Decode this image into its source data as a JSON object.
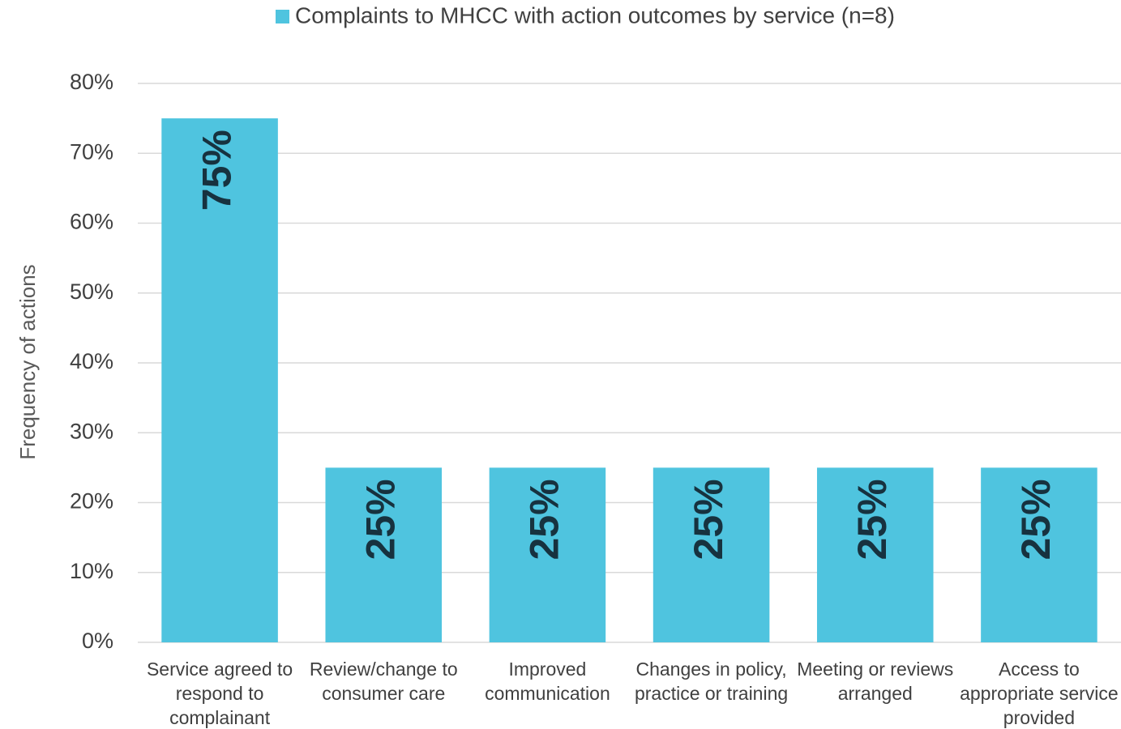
{
  "chart_data": {
    "type": "bar",
    "legend": "Complaints to MHCC with action outcomes by service (n=8)",
    "y_label": "Frequency of actions",
    "categories": [
      "Service agreed to respond to complainant",
      "Review/change to consumer care",
      "Improved communication",
      "Changes in policy, practice or training",
      "Meeting or reviews arranged",
      "Access to appropriate service provided"
    ],
    "values": [
      75,
      25,
      25,
      25,
      25,
      25
    ],
    "value_labels": [
      "75%",
      "25%",
      "25%",
      "25%",
      "25%",
      "25%"
    ],
    "color": "#4fc4df",
    "ylim": [
      0,
      80
    ],
    "yticks": [
      {
        "value": 0,
        "label": "0%"
      },
      {
        "value": 10,
        "label": "10%"
      },
      {
        "value": 20,
        "label": "20%"
      },
      {
        "value": 30,
        "label": "30%"
      },
      {
        "value": 40,
        "label": "40%"
      },
      {
        "value": 50,
        "label": "50%"
      },
      {
        "value": 60,
        "label": "60%"
      },
      {
        "value": 70,
        "label": "70%"
      },
      {
        "value": 80,
        "label": "80%"
      }
    ],
    "grid": true
  }
}
